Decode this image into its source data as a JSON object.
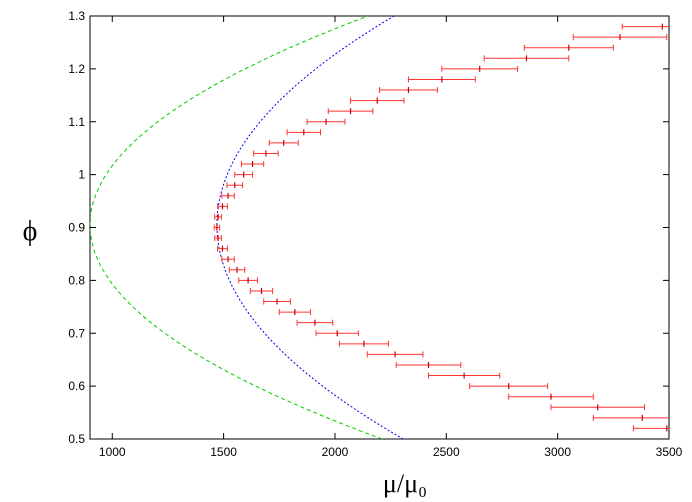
{
  "chart_data": {
    "type": "scatter",
    "title": "",
    "xlabel": "μ/μ₀",
    "ylabel": "ϕ",
    "xlim": [
      900,
      3500
    ],
    "ylim": [
      0.5,
      1.3
    ],
    "x_ticks": [
      1000,
      1500,
      2000,
      2500,
      3000,
      3500
    ],
    "y_ticks": [
      0.5,
      0.6,
      0.7,
      0.8,
      0.9,
      1.0,
      1.1,
      1.2,
      1.3
    ],
    "x_tick_labels": [
      "1000",
      "1500",
      "2000",
      "2500",
      "3000",
      "3500"
    ],
    "y_tick_labels": [
      "0.5",
      "0.6",
      "0.7",
      "0.8",
      "0.9",
      "1",
      "1.1",
      "1.2",
      "1.3"
    ],
    "grid": false,
    "legend": "none",
    "colors": {
      "data_points": "#cc0000",
      "error_bars": "#ff3333",
      "fit_curve": "#0000ff",
      "bound_curves": "#00cc00"
    },
    "series": [
      {
        "kind": "points_with_x_errorbars",
        "points": [
          {
            "x": 3470,
            "y": 1.28,
            "err": 180
          },
          {
            "x": 3280,
            "y": 1.26,
            "err": 210
          },
          {
            "x": 3050,
            "y": 1.24,
            "err": 200
          },
          {
            "x": 2860,
            "y": 1.22,
            "err": 190
          },
          {
            "x": 2650,
            "y": 1.2,
            "err": 170
          },
          {
            "x": 2480,
            "y": 1.18,
            "err": 150
          },
          {
            "x": 2330,
            "y": 1.16,
            "err": 130
          },
          {
            "x": 2190,
            "y": 1.14,
            "err": 120
          },
          {
            "x": 2070,
            "y": 1.12,
            "err": 100
          },
          {
            "x": 1960,
            "y": 1.1,
            "err": 85
          },
          {
            "x": 1860,
            "y": 1.08,
            "err": 75
          },
          {
            "x": 1770,
            "y": 1.06,
            "err": 65
          },
          {
            "x": 1690,
            "y": 1.04,
            "err": 55
          },
          {
            "x": 1630,
            "y": 1.02,
            "err": 50
          },
          {
            "x": 1590,
            "y": 1.0,
            "err": 40
          },
          {
            "x": 1550,
            "y": 0.98,
            "err": 35
          },
          {
            "x": 1520,
            "y": 0.96,
            "err": 28
          },
          {
            "x": 1495,
            "y": 0.94,
            "err": 22
          },
          {
            "x": 1475,
            "y": 0.92,
            "err": 15
          },
          {
            "x": 1470,
            "y": 0.9,
            "err": 12
          },
          {
            "x": 1475,
            "y": 0.88,
            "err": 15
          },
          {
            "x": 1495,
            "y": 0.86,
            "err": 22
          },
          {
            "x": 1520,
            "y": 0.84,
            "err": 28
          },
          {
            "x": 1560,
            "y": 0.82,
            "err": 35
          },
          {
            "x": 1610,
            "y": 0.8,
            "err": 42
          },
          {
            "x": 1670,
            "y": 0.78,
            "err": 50
          },
          {
            "x": 1740,
            "y": 0.76,
            "err": 60
          },
          {
            "x": 1820,
            "y": 0.74,
            "err": 70
          },
          {
            "x": 1910,
            "y": 0.72,
            "err": 80
          },
          {
            "x": 2010,
            "y": 0.7,
            "err": 95
          },
          {
            "x": 2130,
            "y": 0.68,
            "err": 110
          },
          {
            "x": 2270,
            "y": 0.66,
            "err": 125
          },
          {
            "x": 2420,
            "y": 0.64,
            "err": 145
          },
          {
            "x": 2580,
            "y": 0.62,
            "err": 160
          },
          {
            "x": 2780,
            "y": 0.6,
            "err": 175
          },
          {
            "x": 2970,
            "y": 0.58,
            "err": 190
          },
          {
            "x": 3180,
            "y": 0.56,
            "err": 210
          },
          {
            "x": 3380,
            "y": 0.54,
            "err": 220
          },
          {
            "x": 3490,
            "y": 0.52,
            "err": 150
          }
        ]
      },
      {
        "kind": "fit_curve",
        "style": "dotted",
        "form": "x = 1470 + 5100 * (y - 0.905)^2",
        "vertex": {
          "x": 1470,
          "y": 0.905
        },
        "coefficient": 5100
      },
      {
        "kind": "bound_curves",
        "style": "dashed",
        "form": "x = 900 + 8000 * (y - 0.905)^2",
        "vertex": {
          "x": 900,
          "y": 0.905
        },
        "coefficient": 8000
      }
    ]
  }
}
